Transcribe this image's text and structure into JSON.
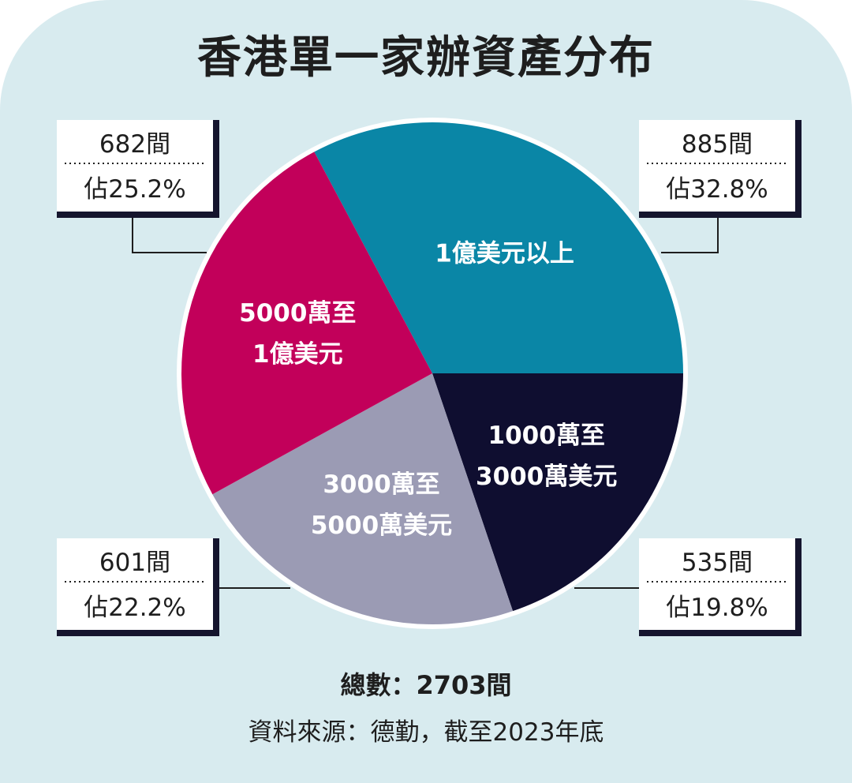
{
  "chart_data": {
    "type": "pie",
    "title": "香港單一家辦資產分布",
    "slices": [
      {
        "label_lines": [
          "1億美元以上"
        ],
        "count": 885,
        "count_text": "885間",
        "percent": 32.8,
        "percent_text": "佔32.8%",
        "color": "#0a86a6",
        "callout_corner": "top-right"
      },
      {
        "label_lines": [
          "1000萬至",
          "3000萬美元"
        ],
        "count": 535,
        "count_text": "535間",
        "percent": 19.8,
        "percent_text": "佔19.8%",
        "color": "#0f0e30",
        "callout_corner": "bottom-right"
      },
      {
        "label_lines": [
          "3000萬至",
          "5000萬美元"
        ],
        "count": 601,
        "count_text": "601間",
        "percent": 22.2,
        "percent_text": "佔22.2%",
        "color": "#9b9bb4",
        "callout_corner": "bottom-left"
      },
      {
        "label_lines": [
          "5000萬至",
          "1億美元"
        ],
        "count": 682,
        "count_text": "682間",
        "percent": 25.2,
        "percent_text": "佔25.2%",
        "color": "#c2005a",
        "callout_corner": "top-left"
      }
    ],
    "total_text": "總數：2703間",
    "source_text": "資料來源：德勤，截至2023年底"
  }
}
